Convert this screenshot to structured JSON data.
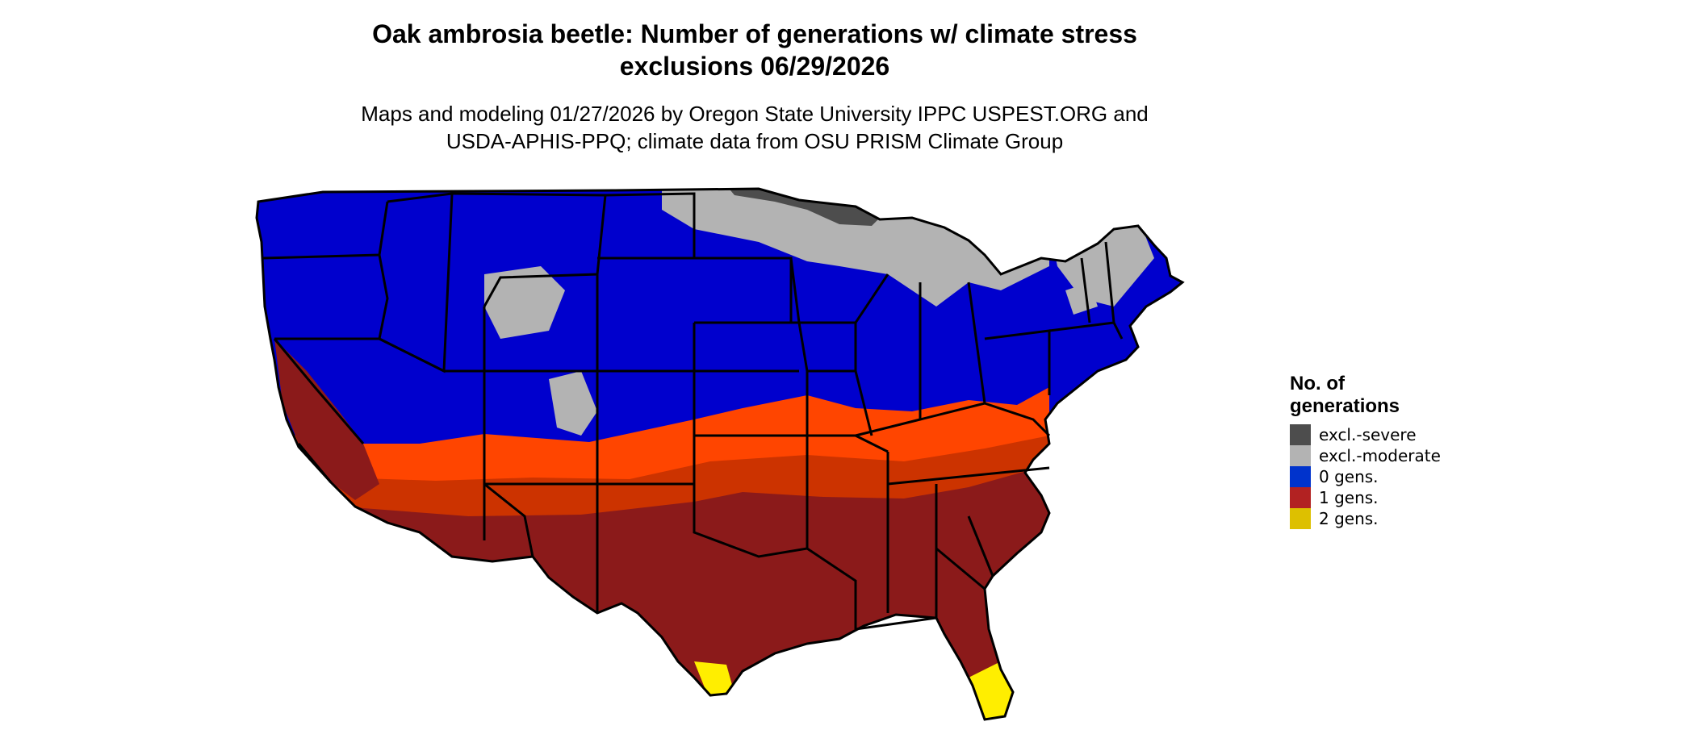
{
  "title_line1": "Oak ambrosia beetle: Number of generations w/ climate stress",
  "title_line2": "exclusions 06/29/2026",
  "subtitle_line1": "Maps and modeling 01/27/2026 by Oregon State University IPPC USPEST.ORG and",
  "subtitle_line2": "USDA-APHIS-PPQ; climate data from OSU PRISM Climate Group",
  "legend": {
    "title_line1": "No. of",
    "title_line2": "generations",
    "items": [
      {
        "label": "excl.-severe",
        "color": "#4d4d4d"
      },
      {
        "label": "excl.-moderate",
        "color": "#b3b3b3"
      },
      {
        "label": "0 gens.",
        "color": "#0033cc"
      },
      {
        "label": "1 gens.",
        "color": "#b22222"
      },
      {
        "label": "2 gens.",
        "color": "#ddc000"
      }
    ]
  },
  "map_colors": {
    "ocean": "#ffffff",
    "zero_gens": "#0000cd",
    "excl_moderate": "#b3b3b3",
    "excl_severe": "#4d4d4d",
    "one_gen_dark": "#8b1a1a",
    "one_gen_mid": "#cc3300",
    "one_gen_light": "#ff4500",
    "two_gens": "#ffee00",
    "borders": "#000000"
  }
}
